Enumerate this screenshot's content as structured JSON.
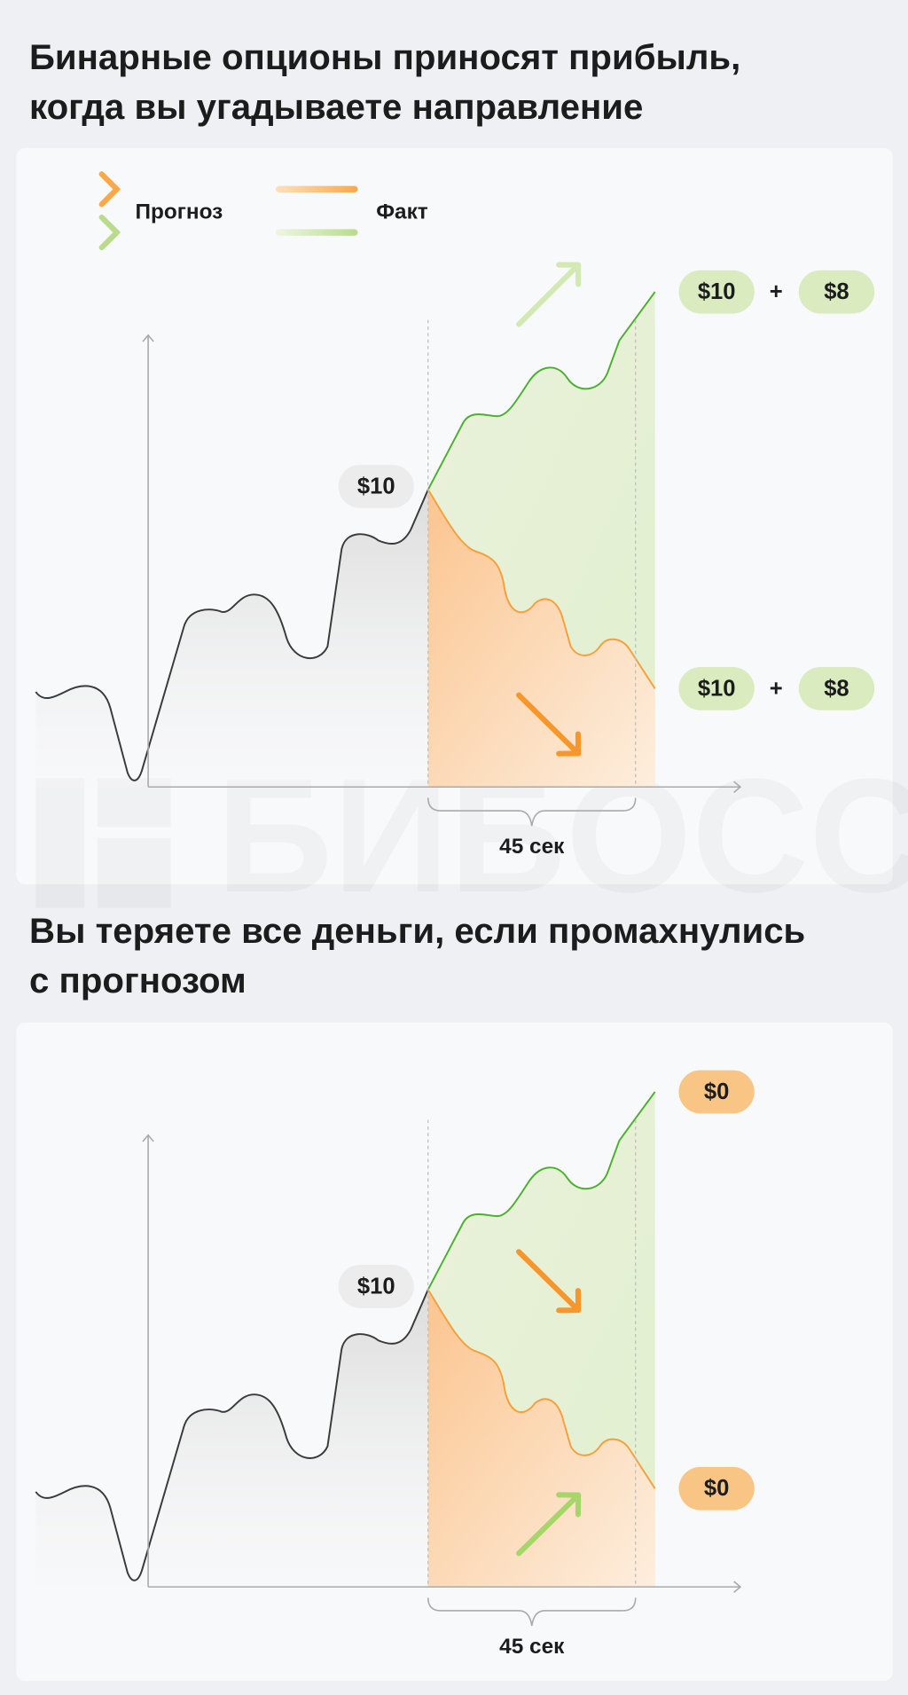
{
  "watermark": "БИБОСС",
  "panels": [
    {
      "title_lines": [
        "Бинарные опционы приносят прибыль,",
        "когда вы угадываете направление"
      ],
      "legend": {
        "forecast": "Прогноз",
        "fact": "Факт"
      },
      "price_label": "$10",
      "outcomes": [
        {
          "stake": "$10",
          "plus": "+",
          "payout": "$8"
        },
        {
          "stake": "$10",
          "plus": "+",
          "payout": "$8"
        }
      ],
      "duration": "45 сек"
    },
    {
      "title_lines": [
        "Вы теряете все деньги, если промахнулись",
        "с прогнозом"
      ],
      "price_label": "$10",
      "outcomes": [
        {
          "result": "$0"
        },
        {
          "result": "$0"
        }
      ],
      "duration": "45 сек"
    }
  ]
}
